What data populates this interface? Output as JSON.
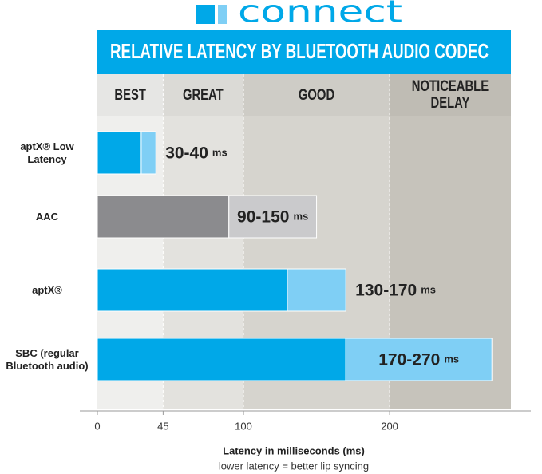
{
  "chart_data": {
    "type": "range-bar",
    "brand": "connect",
    "title": "RELATIVE LATENCY BY BLUETOOTH AUDIO CODEC",
    "x_label": "Latency in milliseconds (ms)",
    "subtitle": "lower latency = better lip syncing",
    "zones": [
      {
        "label": "BEST",
        "from": 0,
        "to": 45,
        "color": "#efefed"
      },
      {
        "label": "GREAT",
        "from": 45,
        "to": 100,
        "color": "#e3e2de"
      },
      {
        "label": "GOOD",
        "from": 100,
        "to": 200,
        "color": "#d6d4ce"
      },
      {
        "label": "NOTICEABLE DELAY",
        "from": 200,
        "to": 283,
        "color": "#c6c3bb"
      }
    ],
    "categories": [
      "aptX® Low Latency",
      "AAC",
      "aptX®",
      "SBC (regular Bluetooth audio)"
    ],
    "low": [
      30,
      90,
      130,
      170
    ],
    "high": [
      40,
      150,
      170,
      270
    ],
    "low_colors": [
      "#00a8e8",
      "#8b8b8e",
      "#00a8e8",
      "#00a8e8"
    ],
    "high_colors": [
      "#7fcff5",
      "#cacacc",
      "#7fcff5",
      "#7fcff5"
    ],
    "value_labels": [
      "30-40",
      "90-150",
      "130-170",
      "170-270"
    ],
    "unit": "ms",
    "xlim": [
      0,
      283
    ],
    "xticks": [
      0,
      45,
      100,
      200
    ]
  }
}
